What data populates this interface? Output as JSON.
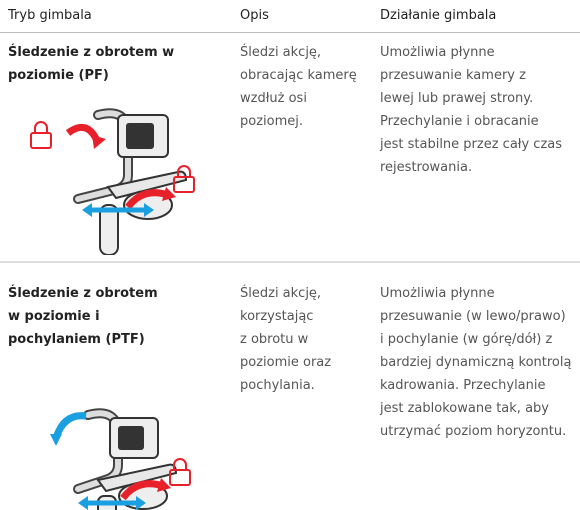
{
  "table": {
    "header": [
      "Tryb gimbala",
      "Opis",
      "Działanie gimbala"
    ],
    "rows": [
      [
        [
          "Śledzenie z obrotem w",
          "poziomie (PF)"
        ],
        [
          "Śledzi akcję,",
          "obracając kamerę",
          "wzdłuż osi",
          "poziomej."
        ],
        [
          "Umożliwia płynne",
          "przesuwanie kamery z",
          "lewej lub prawej strony.",
          "Przechylanie i obracanie",
          "jest stabilne przez cały czas",
          "rejestrowania."
        ]
      ],
      [
        [
          "Śledzenie z obrotem",
          "w poziomie i",
          "pochylaniem (PTF)"
        ],
        [
          "Śledzi akcję,",
          "korzystając",
          "z obrotu w",
          "poziomie oraz",
          "pochylania."
        ],
        [
          "Umożliwia płynne",
          "przesuwanie (w lewo/prawo)",
          "i pochylanie (w górę/dół) z",
          "bardziej dynamiczną kontrolą",
          "kadrowania. Przechylanie",
          "jest zablokowane tak, aby",
          "utrzymać poziom horyzontu."
        ]
      ]
    ]
  }
}
